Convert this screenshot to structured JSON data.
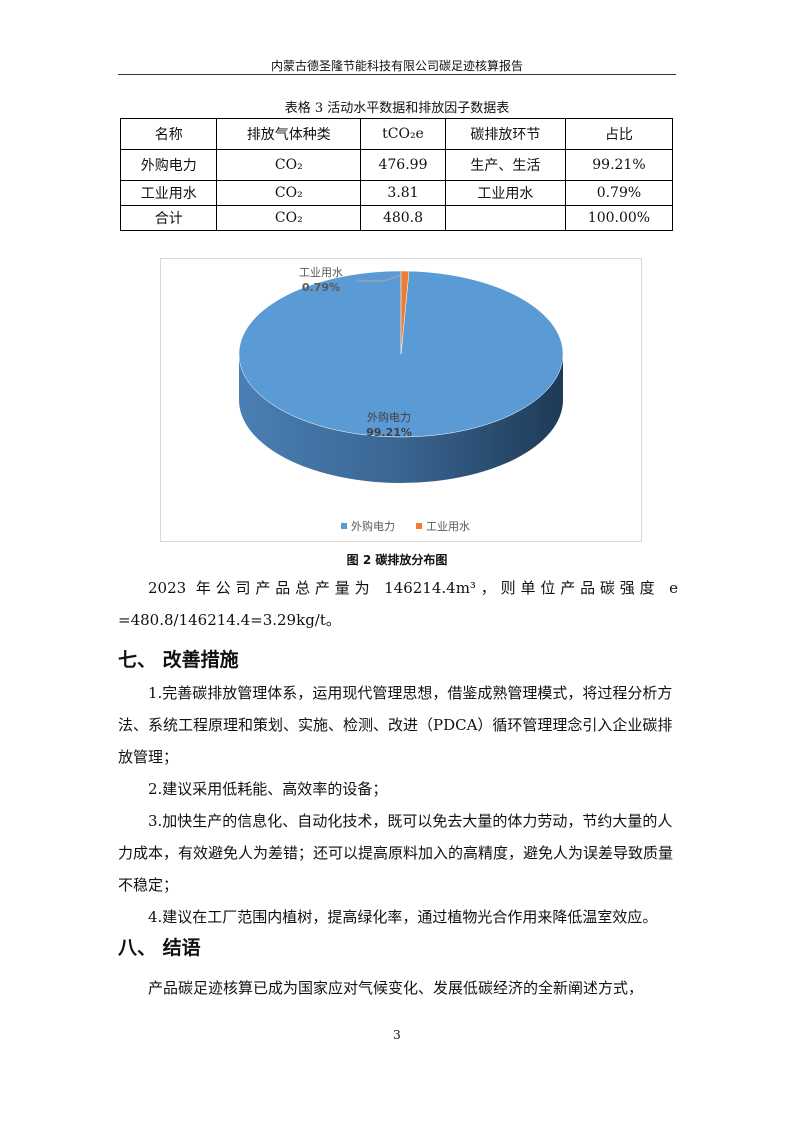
{
  "header": "内蒙古德圣隆节能科技有限公司碳足迹核算报告",
  "table": {
    "caption": "表格 3 活动水平数据和排放因子数据表",
    "headers": [
      "名称",
      "排放气体种类",
      "tCO₂e",
      "碳排放环节",
      "占比"
    ],
    "rows": [
      [
        "外购电力",
        "CO₂",
        "476.99",
        "生产、生活",
        "99.21%"
      ],
      [
        "工业用水",
        "CO₂",
        "3.81",
        "工业用水",
        "0.79%"
      ],
      [
        "合计",
        "CO₂",
        "480.8",
        "",
        "100.00%"
      ]
    ]
  },
  "chart_data": {
    "type": "pie",
    "categories": [
      "外购电力",
      "工业用水"
    ],
    "values": [
      99.21,
      0.79
    ],
    "data_labels": [
      "99.21%",
      "0.79%"
    ],
    "colors": [
      "#5b9bd5",
      "#ed7d31"
    ],
    "legend_position": "bottom",
    "style": "3d"
  },
  "figure_caption": "图 2 碳排放分布图",
  "para1": "2023 年公司产品总产量为 146214.4m³，则单位产品碳强度 e =480.8/146214.4=3.29kg/t。",
  "section7": {
    "title": "七、  改善措施",
    "items": [
      "1.完善碳排放管理体系，运用现代管理思想，借鉴成熟管理模式，将过程分析方法、系统工程原理和策划、实施、检测、改进（PDCA）循环管理理念引入企业碳排放管理；",
      "2.建议采用低耗能、高效率的设备；",
      "3.加快生产的信息化、自动化技术，既可以免去大量的体力劳动，节约大量的人力成本，有效避免人为差错；还可以提高原料加入的高精度，避免人为误差导致质量不稳定；",
      "4.建议在工厂范围内植树，提高绿化率，通过植物光合作用来降低温室效应。"
    ]
  },
  "section8": {
    "title": "八、  结语",
    "text": "产品碳足迹核算已成为国家应对气候变化、发展低碳经济的全新阐述方式，"
  },
  "page_number": "3"
}
